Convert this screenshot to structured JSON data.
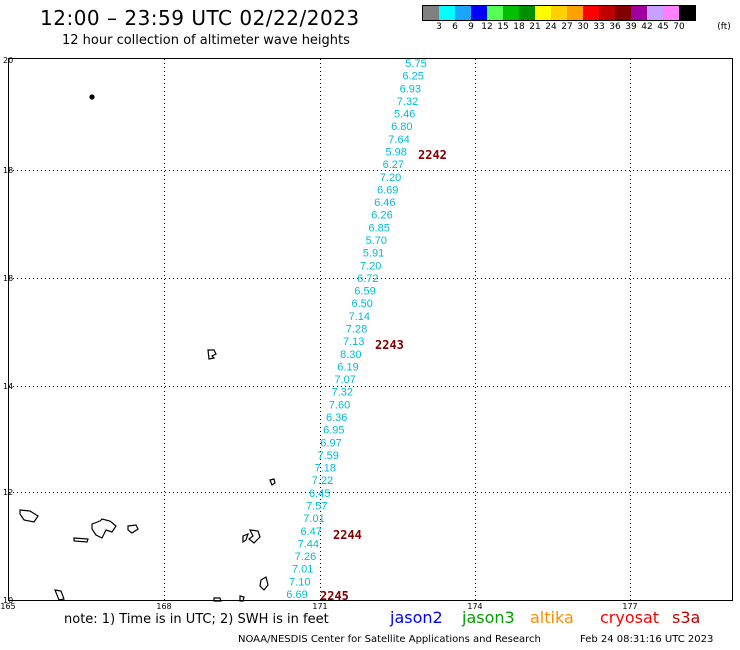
{
  "header": {
    "title": "12:00 – 23:59 UTC 02/22/2023",
    "subtitle": "12 hour collection of altimeter wave heights"
  },
  "legend": {
    "unit": "(ft)",
    "ticks": [
      "3",
      "6",
      "9",
      "12",
      "15",
      "18",
      "21",
      "24",
      "27",
      "30",
      "33",
      "36",
      "39",
      "42",
      "45",
      "70"
    ],
    "colors": [
      "#808080",
      "#00ffff",
      "#1aa6ff",
      "#0000ff",
      "#55ff55",
      "#00c000",
      "#009000",
      "#ffff00",
      "#ffd000",
      "#ffa000",
      "#ff0000",
      "#c00000",
      "#800000",
      "#a000a0",
      "#c8a0ff",
      "#ff80ff",
      "#000000"
    ]
  },
  "axes": {
    "lat_labels": [
      "20",
      "18",
      "18",
      "14",
      "12",
      "10"
    ],
    "lon_labels": [
      "165",
      "168",
      "171",
      "174",
      "177"
    ]
  },
  "track": {
    "color": "#00bcd4",
    "values": [
      "5.75",
      "6.25",
      "6.93",
      "7.32",
      "5.46",
      "6.80",
      "7.64",
      "5.98",
      "6.27",
      "7.20",
      "6.69",
      "6.46",
      "6.26",
      "6.85",
      "5.70",
      "5.91",
      "7.20",
      "6.72",
      "6.59",
      "6.50",
      "7.14",
      "7.28",
      "7.13",
      "8.30",
      "6.19",
      "7.07",
      "7.32",
      "7.60",
      "6.36",
      "6.95",
      "6.97",
      "7.59",
      "7.18",
      "7.22",
      "6.45",
      "7.57",
      "7.01",
      "6.47",
      "7.44",
      "7.26",
      "7.01",
      "7.10",
      "6.69"
    ]
  },
  "orbits": {
    "color": "#800000",
    "labels": [
      "2242",
      "2243",
      "2244",
      "2245"
    ]
  },
  "footer": {
    "note": "note: 1) Time is in UTC; 2) SWH is in feet",
    "satellites": [
      {
        "name": "jason2",
        "color": "#0000ff"
      },
      {
        "name": "jason3",
        "color": "#00a000"
      },
      {
        "name": "altika",
        "color": "#ff8c00"
      },
      {
        "name": "cryosat",
        "color": "#ff0000"
      },
      {
        "name": "s3a",
        "color": "#c00000"
      }
    ],
    "credit": "NOAA/NESDIS Center for Satellite Applications and Research",
    "timestamp": "Feb 24 08:31:16 UTC 2023"
  }
}
